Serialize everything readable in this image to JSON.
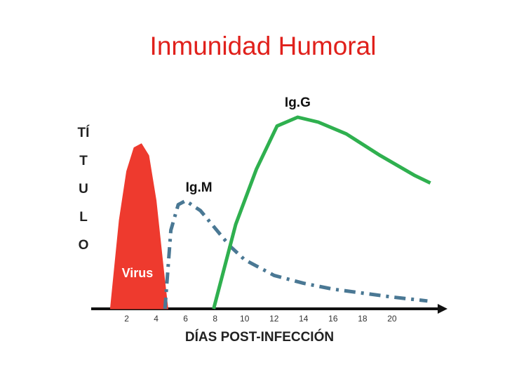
{
  "chart_data": {
    "type": "line",
    "title": "Inmunidad Humoral",
    "x_label": "DÍAS POST-INFECCIÓN",
    "y_label": "TÍTULO",
    "xlim": [
      -0.5,
      23
    ],
    "ylim": [
      0,
      100
    ],
    "xticks": [
      2,
      4,
      6,
      8,
      10,
      12,
      14,
      16,
      18,
      20
    ],
    "series": [
      {
        "name": "Virus",
        "color": "#ee3a2e",
        "fill": true,
        "x": [
          0.9,
          1.5,
          2,
          2.5,
          3,
          3.5,
          4,
          4.5,
          4.8
        ],
        "values": [
          0,
          45,
          70,
          82,
          84,
          78,
          55,
          20,
          0
        ]
      },
      {
        "name": "Ig.M",
        "color": "#4a7894",
        "dash": true,
        "x": [
          4.6,
          5,
          5.5,
          6,
          7,
          8,
          9,
          10,
          12,
          14,
          16,
          18,
          20,
          22.4
        ],
        "values": [
          0,
          40,
          53,
          55,
          50,
          41,
          32,
          25,
          17,
          13,
          10,
          8,
          6,
          4
        ]
      },
      {
        "name": "Ig.G",
        "color": "#2fb04f",
        "x": [
          7.9,
          9.4,
          10.8,
          12.2,
          13.6,
          15,
          16.9,
          19.2,
          21.5,
          22.6
        ],
        "values": [
          0,
          43,
          71,
          93,
          97.5,
          95,
          89,
          78,
          68,
          64
        ]
      }
    ]
  }
}
